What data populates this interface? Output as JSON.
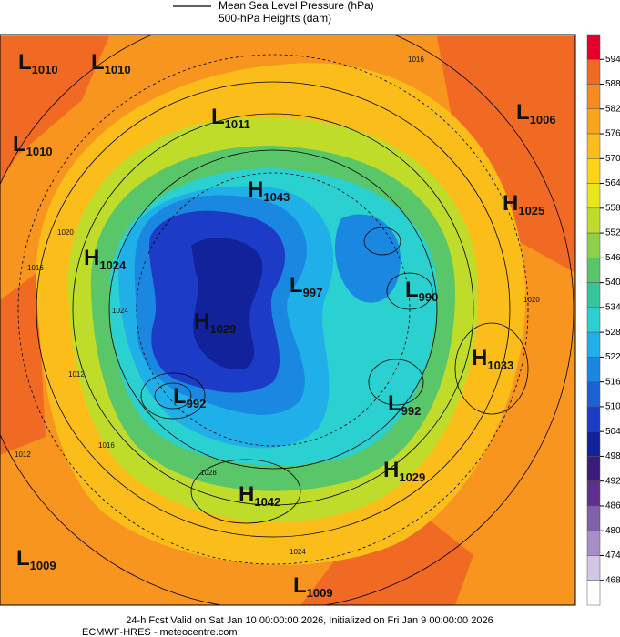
{
  "legend": {
    "line_label": "Mean Sea Level Pressure (hPa)",
    "fill_label": "500-hPa Heights (dam)"
  },
  "colorbar": {
    "ticks": [
      594,
      588,
      582,
      576,
      570,
      564,
      558,
      552,
      546,
      540,
      534,
      528,
      522,
      516,
      510,
      504,
      498,
      492,
      486,
      480,
      474,
      468
    ],
    "colors": [
      "#e4002b",
      "#f06a24",
      "#f58a1f",
      "#f9a51c",
      "#fbbd1a",
      "#fdd417",
      "#e9e61b",
      "#bfdc2a",
      "#8ed04a",
      "#5ac66a",
      "#35c59a",
      "#2bd0d0",
      "#1fb0ea",
      "#1a88e0",
      "#1c60d6",
      "#1a3cc8",
      "#12229a",
      "#3a1a7a",
      "#5e2f8e",
      "#8060a8",
      "#a68ec6",
      "#d2c6e4",
      "#ffffff"
    ]
  },
  "centers": [
    {
      "type": "L",
      "value": 1010
    },
    {
      "type": "L",
      "value": 1010
    },
    {
      "type": "L",
      "value": 1011
    },
    {
      "type": "L",
      "value": 1006
    },
    {
      "type": "L",
      "value": 1010
    },
    {
      "type": "H",
      "value": 1043
    },
    {
      "type": "H",
      "value": 1025
    },
    {
      "type": "H",
      "value": 1024
    },
    {
      "type": "L",
      "value": 997
    },
    {
      "type": "L",
      "value": 990
    },
    {
      "type": "H",
      "value": 1029
    },
    {
      "type": "H",
      "value": 1033
    },
    {
      "type": "L",
      "value": 992
    },
    {
      "type": "L",
      "value": 992
    },
    {
      "type": "H",
      "value": 1029
    },
    {
      "type": "H",
      "value": 1042
    },
    {
      "type": "L",
      "value": 1009
    },
    {
      "type": "L",
      "value": 1009
    }
  ],
  "contour_labels": [
    "1016",
    "1020",
    "1016",
    "1012",
    "1024",
    "1020",
    "1016",
    "1012",
    "1028",
    "1024"
  ],
  "footer": {
    "line1": "24-h Fcst Valid on Sat Jan 10 00:00:00 2026, Initialized on Fri Jan  9 00:00:00 2026",
    "line2": "ECMWF-HRES  - meteocentre.com"
  }
}
